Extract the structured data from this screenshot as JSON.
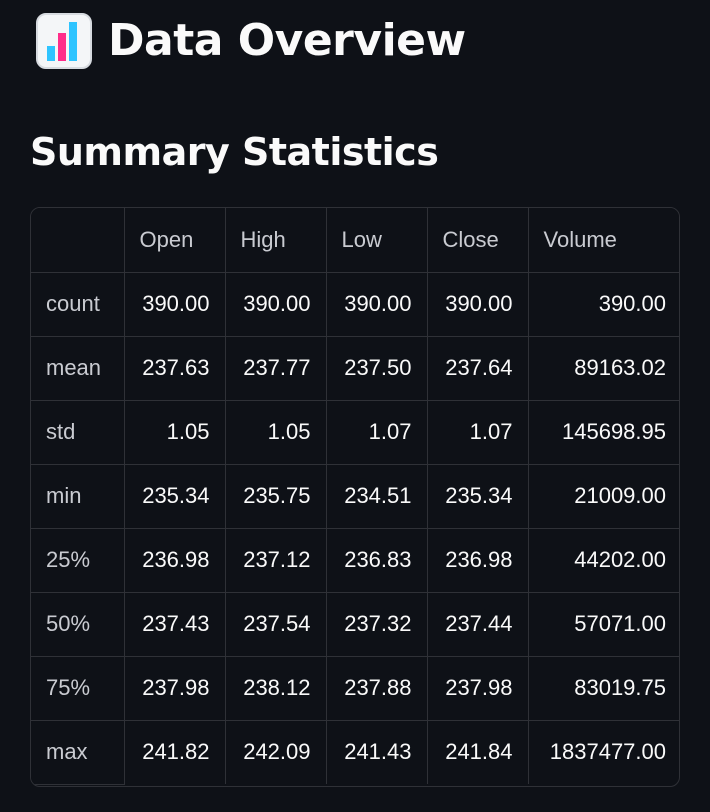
{
  "header": {
    "icon": "bar-chart-icon",
    "title": "Data Overview"
  },
  "summary": {
    "title": "Summary Statistics",
    "columns": [
      "",
      "Open",
      "High",
      "Low",
      "Close",
      "Volume"
    ],
    "rows": [
      {
        "label": "count",
        "values": [
          "390.00",
          "390.00",
          "390.00",
          "390.00",
          "390.00"
        ]
      },
      {
        "label": "mean",
        "values": [
          "237.63",
          "237.77",
          "237.50",
          "237.64",
          "89163.02"
        ]
      },
      {
        "label": "std",
        "values": [
          "1.05",
          "1.05",
          "1.07",
          "1.07",
          "145698.95"
        ]
      },
      {
        "label": "min",
        "values": [
          "235.34",
          "235.75",
          "234.51",
          "235.34",
          "21009.00"
        ]
      },
      {
        "label": "25%",
        "values": [
          "236.98",
          "237.12",
          "236.83",
          "236.98",
          "44202.00"
        ]
      },
      {
        "label": "50%",
        "values": [
          "237.43",
          "237.54",
          "237.32",
          "237.44",
          "57071.00"
        ]
      },
      {
        "label": "75%",
        "values": [
          "237.98",
          "238.12",
          "237.88",
          "237.98",
          "83019.75"
        ]
      },
      {
        "label": "max",
        "values": [
          "241.82",
          "242.09",
          "241.43",
          "241.84",
          "1837477.00"
        ]
      }
    ]
  },
  "colors": {
    "background": "#0e1117",
    "text": "#fafafa",
    "muted_text": "#c9cbd1",
    "border": "#2f3137"
  }
}
